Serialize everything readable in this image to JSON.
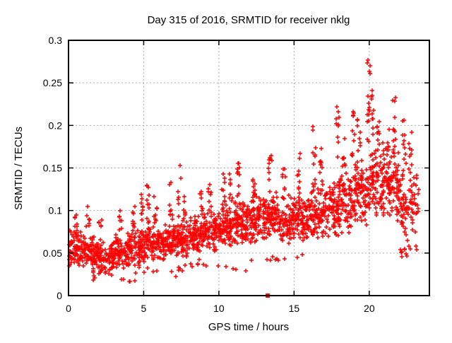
{
  "colors": {
    "marker": "#ff0000",
    "grid": "#a9a9a9",
    "axis": "#000000",
    "background": "#ffffff"
  },
  "chart_data": {
    "type": "scatter",
    "title": "Day 315 of 2016, SRMTID for receiver nklg",
    "xlabel": "GPS time / hours",
    "ylabel": "SRMTID / TECUs",
    "xlim": [
      0,
      24
    ],
    "ylim": [
      0,
      0.3
    ],
    "xticks": [
      0,
      5,
      10,
      15,
      20
    ],
    "xtick_labels": [
      "0",
      "5",
      "10",
      "15",
      "20"
    ],
    "yticks": [
      0,
      0.05,
      0.1,
      0.15,
      0.2,
      0.25,
      0.3
    ],
    "ytick_labels": [
      "0",
      "0.05",
      "0.1",
      "0.15",
      "0.2",
      "0.25",
      "0.3"
    ],
    "grid": true,
    "legend": "none",
    "marker": {
      "shape": "plus",
      "color": "#ff0000",
      "size": 7
    },
    "special_points": [
      {
        "x": 13.25,
        "y": 0,
        "shape": "filled-square",
        "color": "#ff0000"
      }
    ],
    "density_bins": [
      [
        0.03,
        1.0,
        0.032,
        0.078,
        85
      ],
      [
        1.0,
        2.0,
        0.027,
        0.075,
        85
      ],
      [
        2.0,
        3.0,
        0.02,
        0.068,
        80
      ],
      [
        3.0,
        4.0,
        0.028,
        0.075,
        82
      ],
      [
        4.0,
        5.0,
        0.033,
        0.082,
        85
      ],
      [
        5.0,
        6.0,
        0.038,
        0.086,
        85
      ],
      [
        6.0,
        7.0,
        0.04,
        0.085,
        82
      ],
      [
        7.0,
        8.0,
        0.044,
        0.09,
        85
      ],
      [
        8.0,
        9.0,
        0.048,
        0.095,
        85
      ],
      [
        9.0,
        10.0,
        0.05,
        0.1,
        88
      ],
      [
        10.0,
        11.0,
        0.055,
        0.108,
        90
      ],
      [
        11.0,
        12.0,
        0.058,
        0.115,
        92
      ],
      [
        12.0,
        13.0,
        0.06,
        0.12,
        90
      ],
      [
        13.0,
        14.0,
        0.063,
        0.125,
        90
      ],
      [
        14.0,
        15.0,
        0.06,
        0.12,
        85
      ],
      [
        15.0,
        16.0,
        0.06,
        0.128,
        85
      ],
      [
        16.0,
        17.0,
        0.062,
        0.133,
        85
      ],
      [
        17.0,
        18.0,
        0.066,
        0.14,
        85
      ],
      [
        18.0,
        19.0,
        0.07,
        0.152,
        88
      ],
      [
        19.0,
        20.0,
        0.075,
        0.165,
        88
      ],
      [
        20.0,
        21.0,
        0.088,
        0.185,
        90
      ],
      [
        21.0,
        22.0,
        0.085,
        0.17,
        85
      ],
      [
        22.0,
        23.0,
        0.06,
        0.16,
        70
      ],
      [
        23.0,
        23.3,
        0.06,
        0.15,
        15
      ],
      [
        1.5,
        4.5,
        0.012,
        0.03,
        14
      ],
      [
        4.5,
        8.0,
        0.02,
        0.038,
        12
      ],
      [
        8.0,
        12.0,
        0.028,
        0.046,
        12
      ],
      [
        12.0,
        16.0,
        0.034,
        0.05,
        10
      ],
      [
        22.0,
        23.2,
        0.044,
        0.06,
        12
      ]
    ],
    "streaks": [
      [
        0.5,
        0.08,
        0.095,
        6
      ],
      [
        1.3,
        0.08,
        0.105,
        7
      ],
      [
        2.1,
        0.07,
        0.09,
        5
      ],
      [
        3.4,
        0.075,
        0.1,
        7
      ],
      [
        4.3,
        0.08,
        0.105,
        7
      ],
      [
        4.9,
        0.085,
        0.12,
        9
      ],
      [
        5.3,
        0.085,
        0.135,
        10
      ],
      [
        5.8,
        0.085,
        0.12,
        8
      ],
      [
        6.8,
        0.085,
        0.133,
        9
      ],
      [
        7.35,
        0.09,
        0.153,
        8
      ],
      [
        7.7,
        0.09,
        0.12,
        7
      ],
      [
        8.8,
        0.095,
        0.122,
        8
      ],
      [
        9.4,
        0.1,
        0.141,
        9
      ],
      [
        10.3,
        0.105,
        0.147,
        9
      ],
      [
        10.8,
        0.108,
        0.15,
        9
      ],
      [
        11.3,
        0.112,
        0.16,
        10
      ],
      [
        12.3,
        0.115,
        0.155,
        9
      ],
      [
        13.4,
        0.12,
        0.165,
        10
      ],
      [
        14.3,
        0.115,
        0.15,
        8
      ],
      [
        15.3,
        0.12,
        0.17,
        9
      ],
      [
        16.35,
        0.13,
        0.2,
        10
      ],
      [
        16.8,
        0.13,
        0.19,
        9
      ],
      [
        17.9,
        0.14,
        0.225,
        10
      ],
      [
        18.3,
        0.145,
        0.19,
        8
      ],
      [
        18.9,
        0.15,
        0.22,
        10
      ],
      [
        19.3,
        0.15,
        0.21,
        9
      ],
      [
        19.95,
        0.165,
        0.285,
        16
      ],
      [
        20.2,
        0.185,
        0.245,
        10
      ],
      [
        20.6,
        0.18,
        0.21,
        7
      ],
      [
        21.2,
        0.165,
        0.2,
        8
      ],
      [
        21.65,
        0.165,
        0.245,
        12
      ],
      [
        22.3,
        0.155,
        0.21,
        9
      ],
      [
        22.75,
        0.15,
        0.195,
        7
      ]
    ]
  }
}
